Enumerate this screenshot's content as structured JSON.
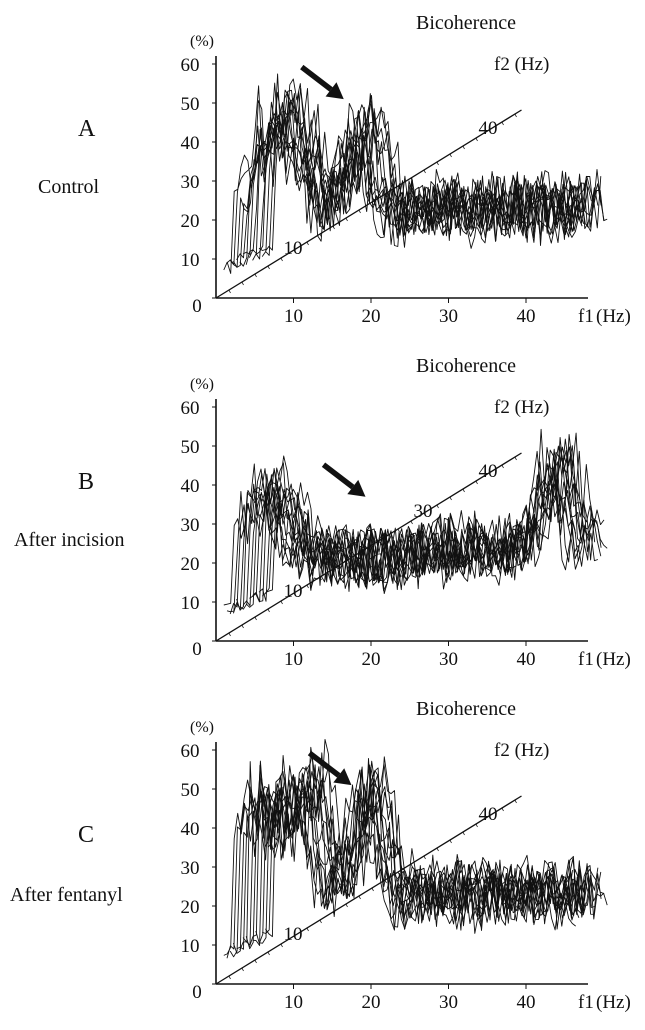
{
  "chart_data": [
    {
      "type": "line",
      "panel": "A",
      "condition": "Control",
      "title": "Bicoherence",
      "ylabel": "(%)",
      "xlabel_prefix": "f1",
      "xlabel_unit": "(Hz)",
      "zlabel": "f2 (Hz)",
      "yticks": [
        0,
        10,
        20,
        30,
        40,
        50,
        60
      ],
      "xticks": [
        10,
        20,
        30,
        40
      ],
      "f2_labels": [
        10,
        40
      ],
      "ylim": [
        0,
        60
      ],
      "xlim": [
        0,
        47
      ],
      "f2_range": [
        0,
        47
      ],
      "grid": false,
      "peaks": [
        {
          "f1": 7,
          "value": 55
        },
        {
          "f1": 17,
          "value": 50
        }
      ],
      "arrow_target_f1": 17,
      "series_count": 14
    },
    {
      "type": "line",
      "panel": "B",
      "condition": "After incision",
      "title": "Bicoherence",
      "ylabel": "(%)",
      "xlabel_prefix": "f1",
      "xlabel_unit": "(Hz)",
      "zlabel": "f2 (Hz)",
      "yticks": [
        0,
        10,
        20,
        30,
        40,
        50,
        60
      ],
      "xticks": [
        10,
        20,
        30,
        40
      ],
      "f2_labels": [
        10,
        30,
        40
      ],
      "ylim": [
        0,
        60
      ],
      "xlim": [
        0,
        47
      ],
      "f2_range": [
        0,
        47
      ],
      "grid": false,
      "peaks": [
        {
          "f1": 5,
          "value": 42
        },
        {
          "f1": 42,
          "value": 48
        }
      ],
      "arrow_target_f1": 18,
      "series_count": 14
    },
    {
      "type": "line",
      "panel": "C",
      "condition": "After fentanyl",
      "title": "Bicoherence",
      "ylabel": "(%)",
      "xlabel_prefix": "f1",
      "xlabel_unit": "(Hz)",
      "zlabel": "f2 (Hz)",
      "yticks": [
        0,
        10,
        20,
        30,
        40,
        50,
        60
      ],
      "xticks": [
        10,
        20,
        30,
        40
      ],
      "f2_labels": [
        10,
        40
      ],
      "ylim": [
        0,
        60
      ],
      "xlim": [
        0,
        47
      ],
      "f2_range": [
        0,
        47
      ],
      "grid": false,
      "peaks": [
        {
          "f1": 4,
          "value": 55
        },
        {
          "f1": 10,
          "value": 57
        },
        {
          "f1": 18,
          "value": 58
        }
      ],
      "arrow_target_f1": 18,
      "series_count": 14
    }
  ]
}
